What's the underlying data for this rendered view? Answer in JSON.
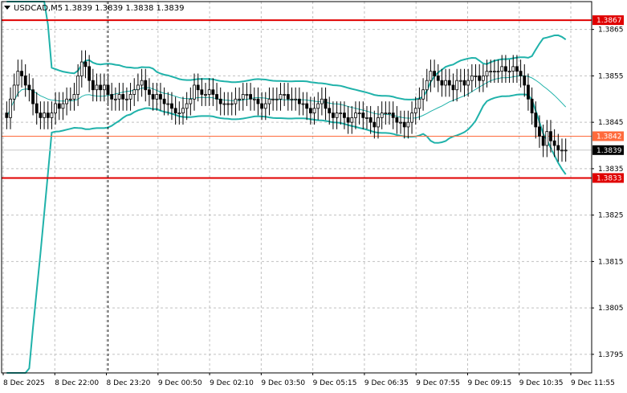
{
  "header": {
    "symbol": "USDCAD,M5",
    "ohlc": "1.3839 1.3839 1.3838 1.3839"
  },
  "colors": {
    "background": "#ffffff",
    "grid": "#c0c0c0",
    "candle": "#000000",
    "bands": "#20b2aa",
    "level_line": "#e00000",
    "current_price_line": "#c8c8c8",
    "orange_line": "#ff6a3c"
  },
  "chart_data": {
    "type": "candlestick",
    "symbol": "USDCAD",
    "timeframe": "M5",
    "ylim": [
      1.3791,
      1.3871
    ],
    "yticks": [
      "1.3865",
      "1.3855",
      "1.3845",
      "1.3835",
      "1.3825",
      "1.3815",
      "1.3805",
      "1.3795"
    ],
    "xticks": [
      "8 Dec 2025",
      "8 Dec 22:00",
      "8 Dec 23:20",
      "9 Dec 00:50",
      "9 Dec 02:10",
      "9 Dec 03:50",
      "9 Dec 05:15",
      "9 Dec 06:35",
      "9 Dec 07:55",
      "9 Dec 09:15",
      "9 Dec 10:35",
      "9 Dec 11:55"
    ],
    "grid": true,
    "levels": [
      {
        "label": "1.3867",
        "value": 1.3867,
        "style": "red"
      },
      {
        "label": "1.3842",
        "value": 1.3842,
        "style": "orange"
      },
      {
        "label": "1.3833",
        "value": 1.3833,
        "style": "red"
      }
    ],
    "current_price": {
      "label": "1.3839",
      "value": 1.3839
    },
    "vertical_marker_index": 27,
    "closes": [
      1.3846,
      1.385,
      1.3853,
      1.3856,
      1.3855,
      1.3853,
      1.3852,
      1.3849,
      1.3847,
      1.3846,
      1.3847,
      1.3846,
      1.3847,
      1.3849,
      1.3848,
      1.3849,
      1.385,
      1.385,
      1.3851,
      1.3855,
      1.3858,
      1.3857,
      1.3854,
      1.3852,
      1.3853,
      1.3852,
      1.3853,
      1.3851,
      1.385,
      1.385,
      1.3851,
      1.385,
      1.385,
      1.3851,
      1.3852,
      1.3853,
      1.3854,
      1.3852,
      1.3851,
      1.385,
      1.3851,
      1.385,
      1.3849,
      1.3849,
      1.3848,
      1.3847,
      1.3847,
      1.3848,
      1.3849,
      1.385,
      1.3853,
      1.3852,
      1.3851,
      1.3851,
      1.3852,
      1.3851,
      1.385,
      1.3849,
      1.3849,
      1.3849,
      1.3849,
      1.385,
      1.385,
      1.3851,
      1.3851,
      1.385,
      1.385,
      1.3849,
      1.3848,
      1.3849,
      1.385,
      1.385,
      1.385,
      1.3851,
      1.3851,
      1.385,
      1.385,
      1.385,
      1.3849,
      1.3849,
      1.3848,
      1.3847,
      1.3848,
      1.3849,
      1.385,
      1.3848,
      1.3847,
      1.3846,
      1.3847,
      1.3847,
      1.3846,
      1.3845,
      1.3846,
      1.3847,
      1.3847,
      1.3846,
      1.3846,
      1.3845,
      1.3844,
      1.3846,
      1.3847,
      1.3847,
      1.3847,
      1.3846,
      1.3845,
      1.3845,
      1.3844,
      1.3845,
      1.3847,
      1.3848,
      1.385,
      1.3852,
      1.3854,
      1.3856,
      1.3855,
      1.3854,
      1.3853,
      1.3854,
      1.3853,
      1.3852,
      1.3854,
      1.3854,
      1.3853,
      1.3854,
      1.3855,
      1.3855,
      1.3854,
      1.3855,
      1.3856,
      1.3856,
      1.3856,
      1.3856,
      1.3857,
      1.3856,
      1.3856,
      1.3857,
      1.3856,
      1.3855,
      1.3853,
      1.385,
      1.3847,
      1.3844,
      1.3842,
      1.384,
      1.3843,
      1.3841,
      1.384,
      1.3839,
      1.3839,
      1.3839
    ]
  }
}
